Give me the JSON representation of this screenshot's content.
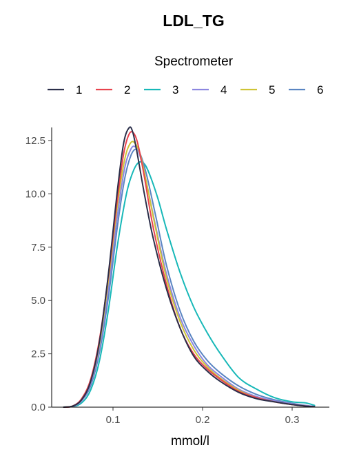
{
  "chart_data": {
    "type": "line",
    "title": "LDL_TG",
    "xlabel": "mmol/l",
    "ylabel": "",
    "xlim": [
      0.04,
      0.34
    ],
    "ylim": [
      0,
      13.0
    ],
    "xticks": [
      0.1,
      0.2,
      0.3
    ],
    "xtick_labels": [
      "0.1",
      "0.2",
      "0.3"
    ],
    "yticks": [
      0.0,
      2.5,
      5.0,
      7.5,
      10.0,
      12.5
    ],
    "ytick_labels": [
      "0.0",
      "2.5",
      "5.0",
      "7.5",
      "10.0",
      "12.5"
    ],
    "grid": false,
    "legend": {
      "title": "Spectrometer",
      "position": "top",
      "orientation": "horizontal"
    },
    "series": [
      {
        "name": "1",
        "color": "#2b2f4a",
        "x": [
          0.045,
          0.055,
          0.065,
          0.075,
          0.085,
          0.095,
          0.105,
          0.112,
          0.118,
          0.122,
          0.127,
          0.135,
          0.145,
          0.16,
          0.175,
          0.19,
          0.205,
          0.22,
          0.24,
          0.26,
          0.28,
          0.3,
          0.315,
          0.325
        ],
        "y": [
          0.0,
          0.05,
          0.35,
          1.2,
          3.1,
          6.3,
          10.2,
          12.4,
          13.1,
          12.9,
          11.9,
          10.0,
          7.9,
          5.5,
          3.7,
          2.4,
          1.7,
          1.2,
          0.7,
          0.4,
          0.25,
          0.12,
          0.05,
          0.02
        ]
      },
      {
        "name": "2",
        "color": "#e8434e",
        "x": [
          0.045,
          0.055,
          0.065,
          0.075,
          0.085,
          0.095,
          0.105,
          0.112,
          0.118,
          0.123,
          0.128,
          0.135,
          0.145,
          0.16,
          0.175,
          0.19,
          0.205,
          0.22,
          0.24,
          0.26,
          0.28,
          0.3,
          0.315,
          0.325
        ],
        "y": [
          0.0,
          0.05,
          0.4,
          1.3,
          3.2,
          6.2,
          9.8,
          11.9,
          12.8,
          12.85,
          12.3,
          10.8,
          8.4,
          5.7,
          3.7,
          2.5,
          1.8,
          1.3,
          0.75,
          0.45,
          0.25,
          0.12,
          0.05,
          0.02
        ]
      },
      {
        "name": "3",
        "color": "#17b8b8",
        "x": [
          0.045,
          0.055,
          0.065,
          0.075,
          0.085,
          0.095,
          0.105,
          0.115,
          0.122,
          0.128,
          0.134,
          0.14,
          0.15,
          0.16,
          0.175,
          0.19,
          0.205,
          0.22,
          0.24,
          0.26,
          0.28,
          0.3,
          0.315,
          0.325
        ],
        "y": [
          0.0,
          0.03,
          0.2,
          0.8,
          2.2,
          4.6,
          7.6,
          10.0,
          11.0,
          11.45,
          11.45,
          11.0,
          9.8,
          8.3,
          6.3,
          4.7,
          3.5,
          2.5,
          1.4,
          0.85,
          0.45,
          0.25,
          0.2,
          0.08
        ]
      },
      {
        "name": "4",
        "color": "#8c86e0",
        "x": [
          0.045,
          0.055,
          0.065,
          0.075,
          0.085,
          0.095,
          0.105,
          0.113,
          0.12,
          0.125,
          0.13,
          0.137,
          0.147,
          0.16,
          0.175,
          0.19,
          0.205,
          0.22,
          0.24,
          0.26,
          0.28,
          0.3,
          0.315,
          0.325
        ],
        "y": [
          0.0,
          0.04,
          0.3,
          1.1,
          2.8,
          5.6,
          9.0,
          11.2,
          12.1,
          12.2,
          11.8,
          10.6,
          8.6,
          6.2,
          4.2,
          2.9,
          2.0,
          1.45,
          0.85,
          0.5,
          0.3,
          0.15,
          0.07,
          0.03
        ]
      },
      {
        "name": "5",
        "color": "#cfc436",
        "x": [
          0.045,
          0.055,
          0.065,
          0.075,
          0.085,
          0.095,
          0.105,
          0.113,
          0.119,
          0.124,
          0.13,
          0.137,
          0.147,
          0.16,
          0.175,
          0.19,
          0.205,
          0.22,
          0.24,
          0.26,
          0.28,
          0.3,
          0.315,
          0.325
        ],
        "y": [
          0.0,
          0.05,
          0.35,
          1.2,
          3.0,
          6.0,
          9.5,
          11.6,
          12.35,
          12.4,
          11.9,
          10.6,
          8.5,
          6.0,
          4.0,
          2.7,
          1.9,
          1.35,
          0.8,
          0.45,
          0.25,
          0.12,
          0.05,
          0.02
        ]
      },
      {
        "name": "6",
        "color": "#5a85c2",
        "x": [
          0.045,
          0.055,
          0.065,
          0.075,
          0.085,
          0.095,
          0.105,
          0.113,
          0.12,
          0.126,
          0.131,
          0.138,
          0.148,
          0.16,
          0.175,
          0.19,
          0.205,
          0.22,
          0.24,
          0.26,
          0.28,
          0.3,
          0.315,
          0.325
        ],
        "y": [
          0.0,
          0.04,
          0.3,
          1.0,
          2.6,
          5.2,
          8.5,
          10.7,
          11.8,
          12.1,
          11.8,
          10.8,
          8.9,
          6.6,
          4.5,
          3.1,
          2.2,
          1.6,
          1.0,
          0.6,
          0.35,
          0.18,
          0.08,
          0.03
        ]
      }
    ]
  }
}
